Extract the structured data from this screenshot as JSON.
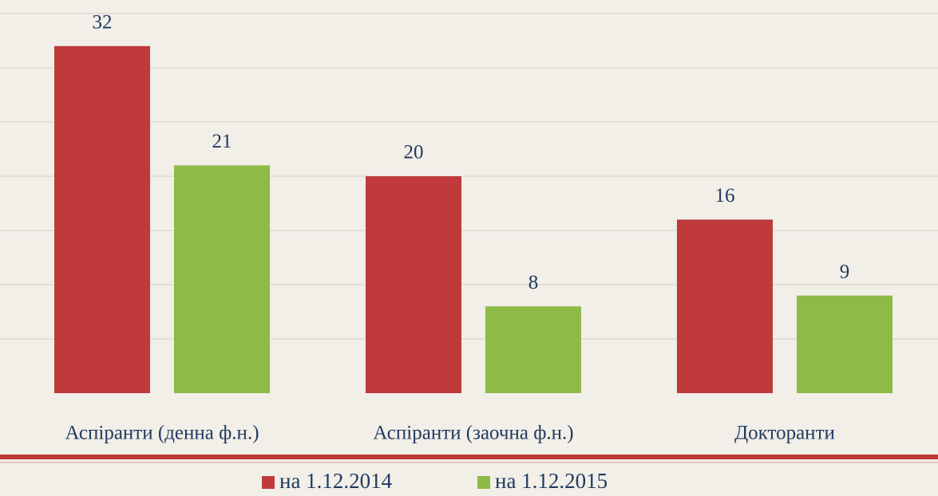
{
  "chart_data": {
    "type": "bar",
    "categories": [
      "Аспіранти (денна ф.н.)",
      "Аспіранти (заочна ф.н.)",
      "Докторанти"
    ],
    "series": [
      {
        "name": "на 1.12.2014",
        "color": "#c0393b",
        "values": [
          32,
          20,
          16
        ]
      },
      {
        "name": "на 1.12.2015",
        "color": "#8dbb46",
        "values": [
          21,
          8,
          9
        ]
      }
    ],
    "ylim": [
      0,
      35
    ],
    "grid": true
  }
}
